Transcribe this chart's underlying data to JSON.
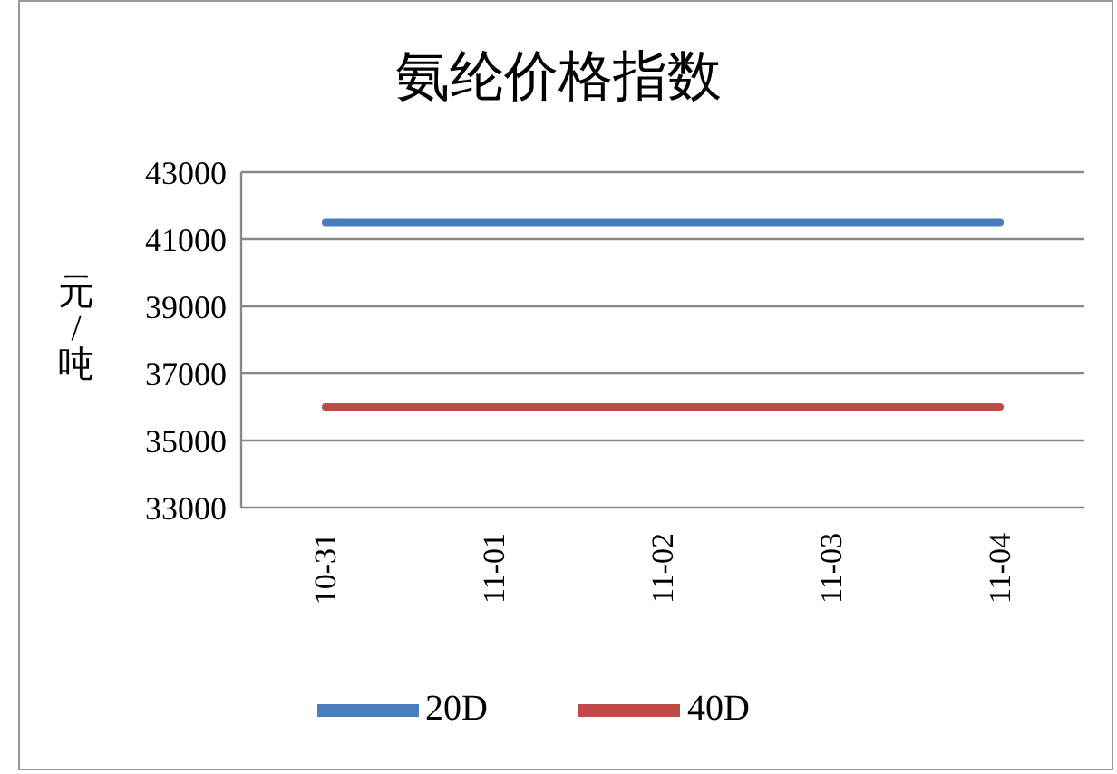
{
  "chart_data": {
    "type": "line",
    "title": "氨纶价格指数",
    "ylabel": "元/吨",
    "categories": [
      "10-31",
      "11-01",
      "11-02",
      "11-03",
      "11-04"
    ],
    "series": [
      {
        "name": "20D",
        "color": "#4a7ebb",
        "values": [
          41500,
          41500,
          41500,
          41500,
          41500
        ]
      },
      {
        "name": "40D",
        "color": "#be4b48",
        "values": [
          36000,
          36000,
          36000,
          36000,
          36000
        ]
      }
    ],
    "ylim": [
      33000,
      43000
    ],
    "yticks": [
      33000,
      35000,
      37000,
      39000,
      41000,
      43000
    ],
    "grid": "y",
    "legend": "bottom",
    "marker": "none",
    "line_style": "solid"
  }
}
